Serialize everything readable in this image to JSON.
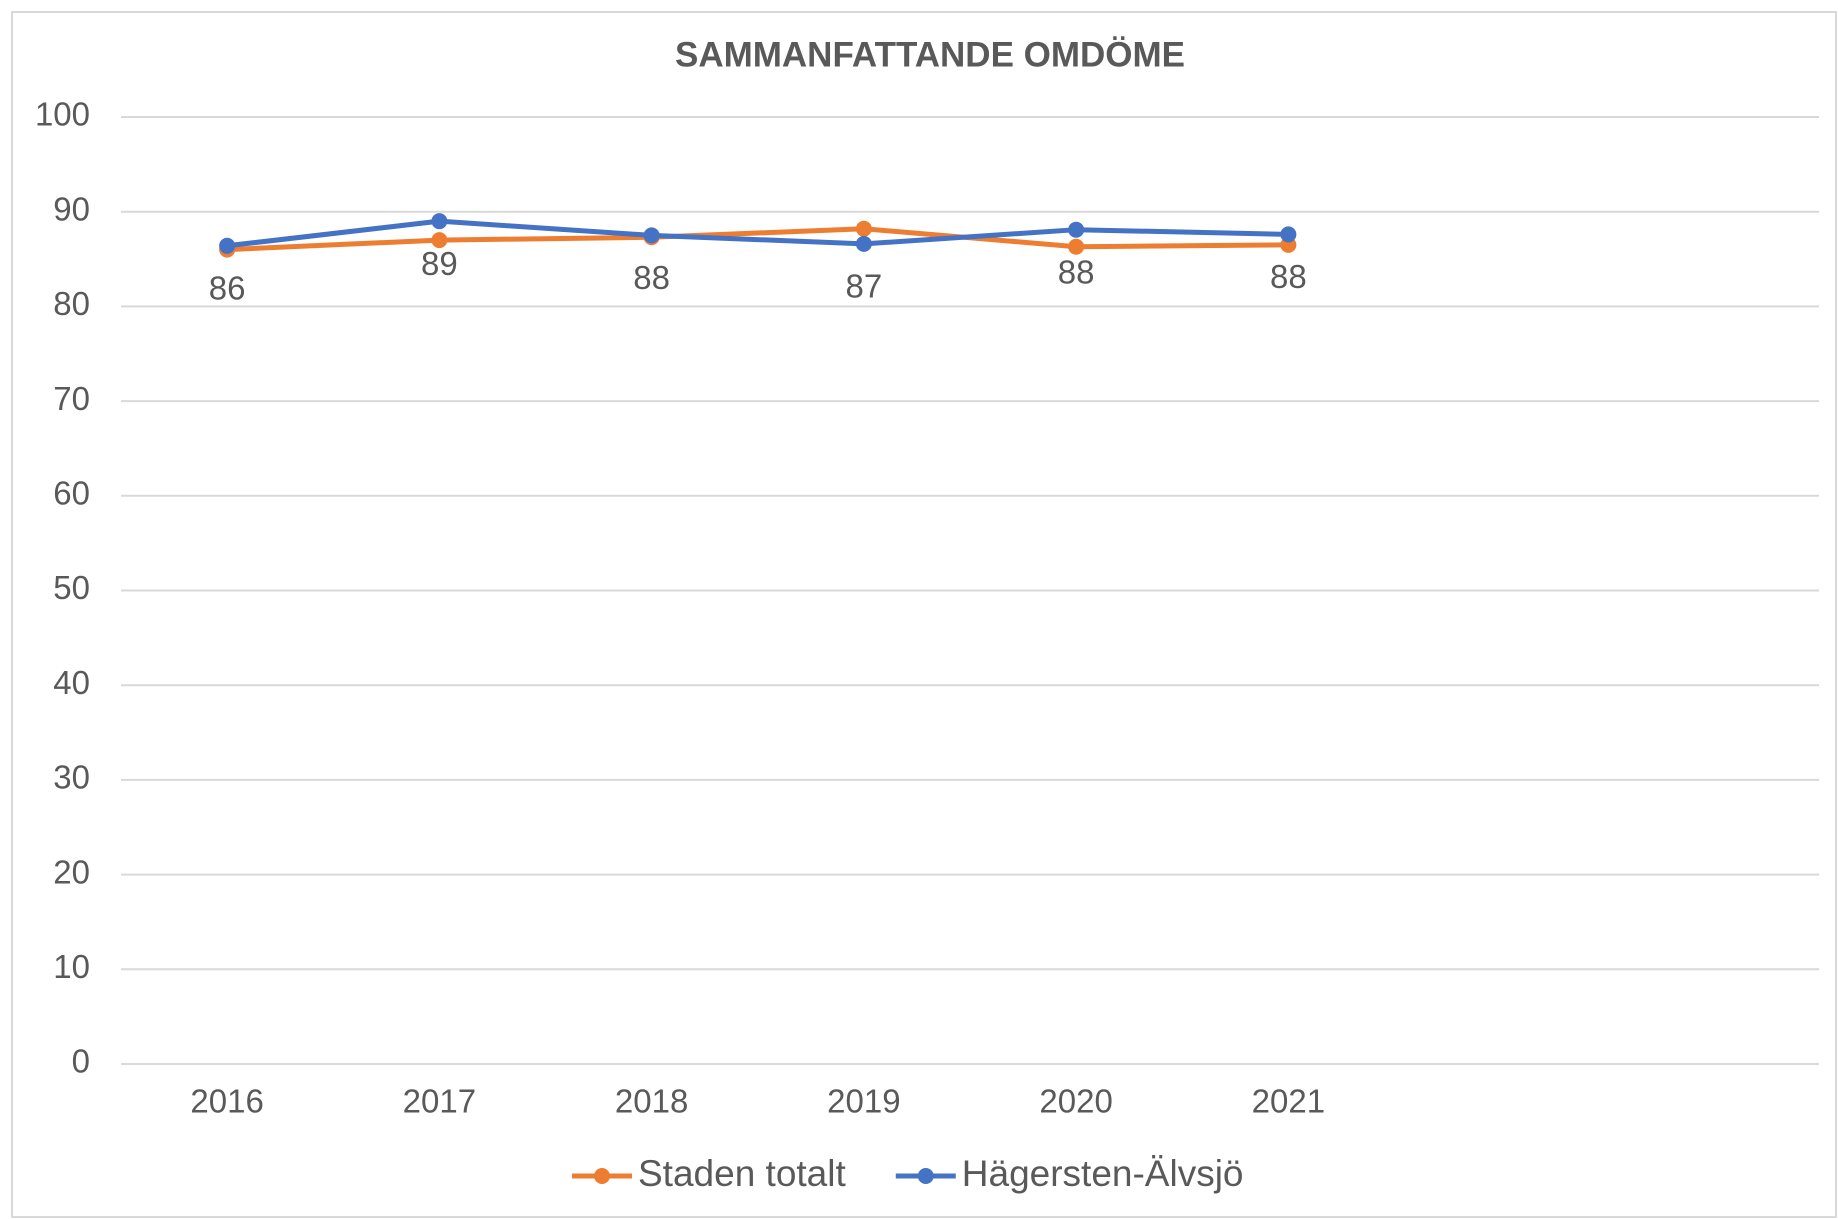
{
  "chart_data": {
    "type": "line",
    "title": "SAMMANFATTANDE OMDÖME",
    "categories": [
      "2016",
      "2017",
      "2018",
      "2019",
      "2020",
      "2021",
      null,
      null
    ],
    "series": [
      {
        "name": "Staden totalt",
        "color": "#ed7d31",
        "values": [
          86,
          87,
          87.3,
          88.2,
          86.3,
          86.5,
          null,
          null
        ]
      },
      {
        "name": "Hägersten-Älvsjö",
        "color": "#4472c4",
        "values": [
          86.4,
          89,
          87.5,
          86.6,
          88.1,
          87.6,
          null,
          null
        ],
        "value_labels": [
          "86",
          "89",
          "88",
          "87",
          "88",
          "88",
          null,
          null
        ]
      }
    ],
    "ylim": [
      0,
      100
    ],
    "yticks": [
      0,
      10,
      20,
      30,
      40,
      50,
      60,
      70,
      80,
      90,
      100
    ],
    "grid": true,
    "legend": "bottom"
  }
}
